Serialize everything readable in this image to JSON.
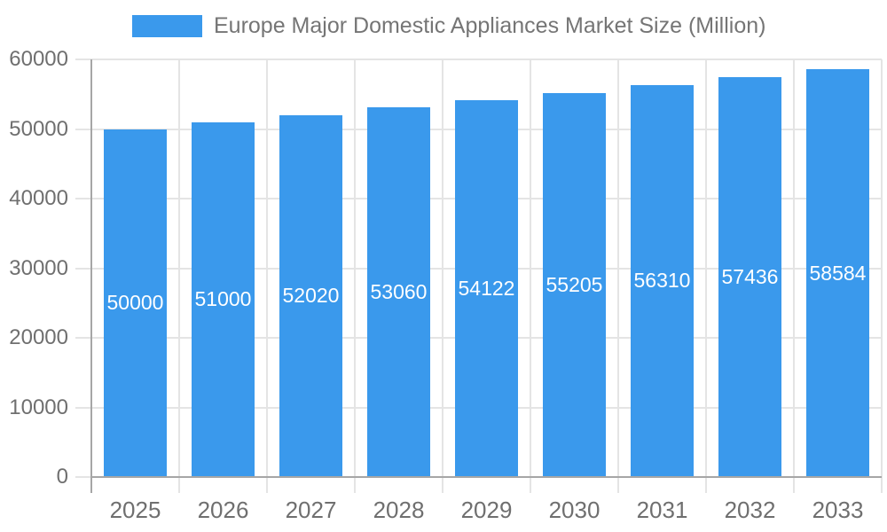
{
  "chart_data": {
    "type": "bar",
    "title": "Europe Major Domestic Appliances Market Size (Million)",
    "legend_position": "top",
    "categories": [
      "2025",
      "2026",
      "2027",
      "2028",
      "2029",
      "2030",
      "2031",
      "2032",
      "2033"
    ],
    "series": [
      {
        "name": "Europe Major Domestic Appliances Market Size (Million)",
        "values": [
          50000,
          51000,
          52020,
          53060,
          54122,
          55205,
          56310,
          57436,
          58584
        ],
        "color": "#3A99EC"
      }
    ],
    "value_labels": [
      "50000",
      "51000",
      "52020",
      "53060",
      "54122",
      "55205",
      "56310",
      "57436",
      "58584"
    ],
    "xlabel": "",
    "ylabel": "",
    "ylim": [
      0,
      60000
    ],
    "ytick_step": 10000,
    "yticks": [
      "0",
      "10000",
      "20000",
      "30000",
      "40000",
      "50000",
      "60000"
    ],
    "grid": "on",
    "colors": {
      "bar": "#3A99EC",
      "bar_value_text": "#FFFFFF",
      "axis_line": "#A6A6A6",
      "gridline": "#E4E4E4",
      "tick_text": "#6F6F6F",
      "legend_text": "#757575",
      "background": "#FFFFFF"
    }
  }
}
